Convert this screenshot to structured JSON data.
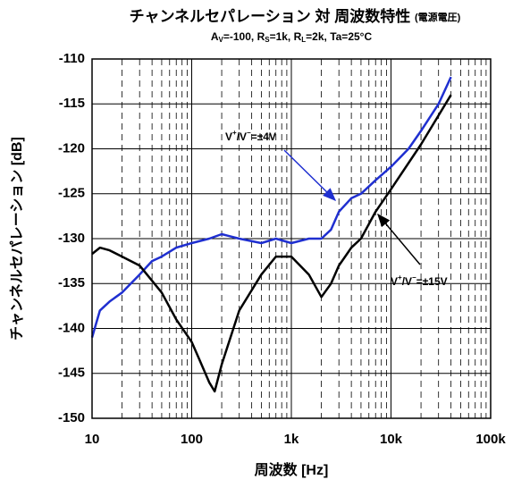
{
  "chart_data": {
    "type": "line",
    "title": [
      "チャンネルセパレーション 対 周波数特性",
      "(電源電圧)"
    ],
    "subtitle": [
      "A",
      "V",
      "=-100, R",
      "S",
      "=1k, R",
      "L",
      "=2k, Ta=25°C"
    ],
    "x_label": "周波数 [Hz]",
    "y_label": "チャンネルセパレーション [dB]",
    "log_x": true,
    "grid": true,
    "xlim": [
      10,
      100000
    ],
    "ylim": [
      -150,
      -110
    ],
    "xticks": [
      10,
      100,
      {
        "value": 1000,
        "label": "1k"
      },
      {
        "value": 10000,
        "label": "10k"
      },
      {
        "value": 100000,
        "label": "100k"
      }
    ],
    "xminorticks": [
      20,
      30,
      40,
      50,
      60,
      70,
      80,
      90,
      200,
      300,
      400,
      500,
      600,
      700,
      800,
      900,
      2000,
      3000,
      4000,
      5000,
      6000,
      7000,
      8000,
      9000,
      20000,
      30000,
      40000,
      50000,
      60000,
      70000,
      80000,
      90000
    ],
    "yticks": [
      -150,
      -145,
      -140,
      -135,
      -130,
      -125,
      -120,
      -115,
      -110
    ],
    "series": [
      {
        "name": [
          "V",
          "+",
          "/V",
          "−",
          "=±4V"
        ],
        "color": "#1f2fd0",
        "x": [
          10,
          12,
          15,
          20,
          30,
          40,
          50,
          70,
          100,
          150,
          200,
          300,
          500,
          700,
          1000,
          1500,
          2000,
          2500,
          3000,
          4000,
          5000,
          7000,
          10000,
          15000,
          20000,
          30000,
          40000
        ],
        "values": [
          -141,
          -138,
          -137,
          -136,
          -134,
          -132.5,
          -132,
          -131,
          -130.5,
          -130,
          -129.5,
          -130,
          -130.5,
          -130,
          -130.5,
          -130,
          -130,
          -129,
          -127,
          -125.5,
          -125,
          -123.5,
          -122,
          -120,
          -118,
          -115,
          -112
        ]
      },
      {
        "name": [
          "V",
          "+",
          "/V",
          "−",
          "=±15V"
        ],
        "color": "#000000",
        "x": [
          10,
          12,
          15,
          20,
          30,
          50,
          70,
          100,
          120,
          150,
          170,
          200,
          300,
          500,
          700,
          1000,
          1500,
          2000,
          2500,
          3000,
          4000,
          5000,
          7000,
          10000,
          20000,
          40000
        ],
        "values": [
          -131.7,
          -131,
          -131.3,
          -132,
          -133,
          -136,
          -139,
          -141.5,
          -143.5,
          -146,
          -147,
          -144,
          -138,
          -134,
          -132,
          -132,
          -134,
          -136.5,
          -135,
          -133,
          -131,
          -130,
          -127,
          -124.5,
          -119.5,
          -114
        ]
      }
    ]
  }
}
